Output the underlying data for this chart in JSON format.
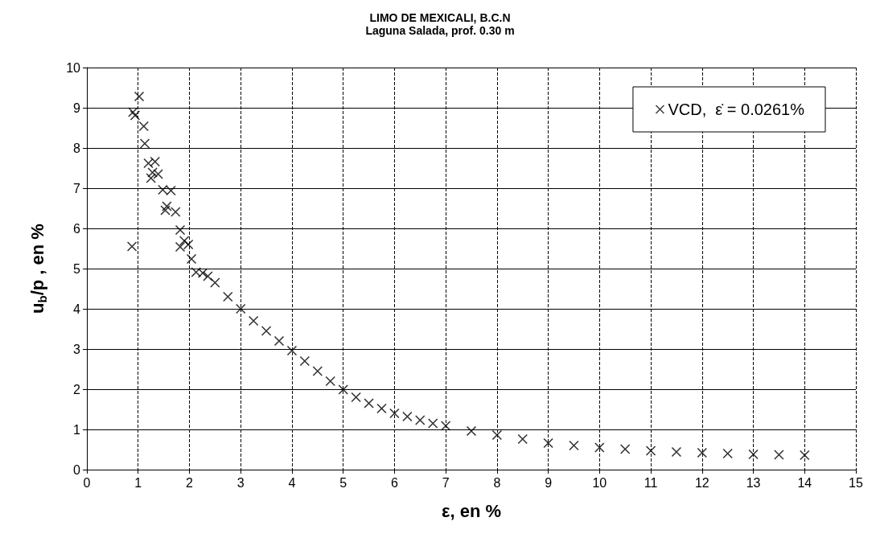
{
  "chart_data": {
    "type": "scatter",
    "title": "LIMO DE MEXICALI, B.C.N",
    "subtitle": "Laguna Salada, prof. 0.30 m",
    "xlabel": "ε, en %",
    "ylabel": "u$_{b}$/p , en %",
    "series": [
      {
        "name": "VCD,  ε̇ = 0.0261%",
        "color": "#000000",
        "x": [
          1.02,
          0.9,
          0.94,
          1.11,
          1.13,
          1.2,
          1.33,
          1.28,
          1.39,
          1.25,
          1.48,
          1.64,
          1.56,
          1.53,
          1.73,
          1.82,
          1.9,
          1.98,
          1.82,
          0.88,
          2.04,
          2.13,
          2.26,
          2.36,
          2.5,
          2.75,
          3,
          3.25,
          3.5,
          3.75,
          4,
          4.25,
          4.5,
          4.75,
          5,
          5.25,
          5.5,
          5.75,
          6,
          6.25,
          6.5,
          6.75,
          7,
          7.5,
          8,
          8.5,
          9,
          9.5,
          10,
          10.5,
          11,
          11.5,
          12,
          12.5,
          13,
          13.5,
          14
        ],
        "values": [
          9.28,
          8.89,
          8.81,
          8.54,
          8.11,
          7.62,
          7.66,
          7.39,
          7.35,
          7.25,
          6.96,
          6.94,
          6.55,
          6.45,
          6.41,
          5.96,
          5.69,
          5.6,
          5.54,
          5.55,
          5.24,
          4.91,
          4.89,
          4.81,
          4.65,
          4.3,
          4.0,
          3.7,
          3.45,
          3.2,
          2.96,
          2.7,
          2.45,
          2.2,
          1.99,
          1.8,
          1.65,
          1.52,
          1.4,
          1.32,
          1.23,
          1.15,
          1.09,
          0.96,
          0.86,
          0.76,
          0.66,
          0.6,
          0.55,
          0.51,
          0.47,
          0.44,
          0.42,
          0.4,
          0.38,
          0.37,
          0.36
        ]
      }
    ],
    "xlim": [
      0,
      15
    ],
    "xticks": [
      0,
      1,
      2,
      3,
      4,
      5,
      6,
      7,
      8,
      9,
      10,
      11,
      12,
      13,
      14,
      15
    ],
    "ylim": [
      0,
      10
    ],
    "yticks": [
      0,
      1,
      2,
      3,
      4,
      5,
      6,
      7,
      8,
      9,
      10
    ],
    "grid": true,
    "legend": "top right",
    "marker": "cross"
  }
}
